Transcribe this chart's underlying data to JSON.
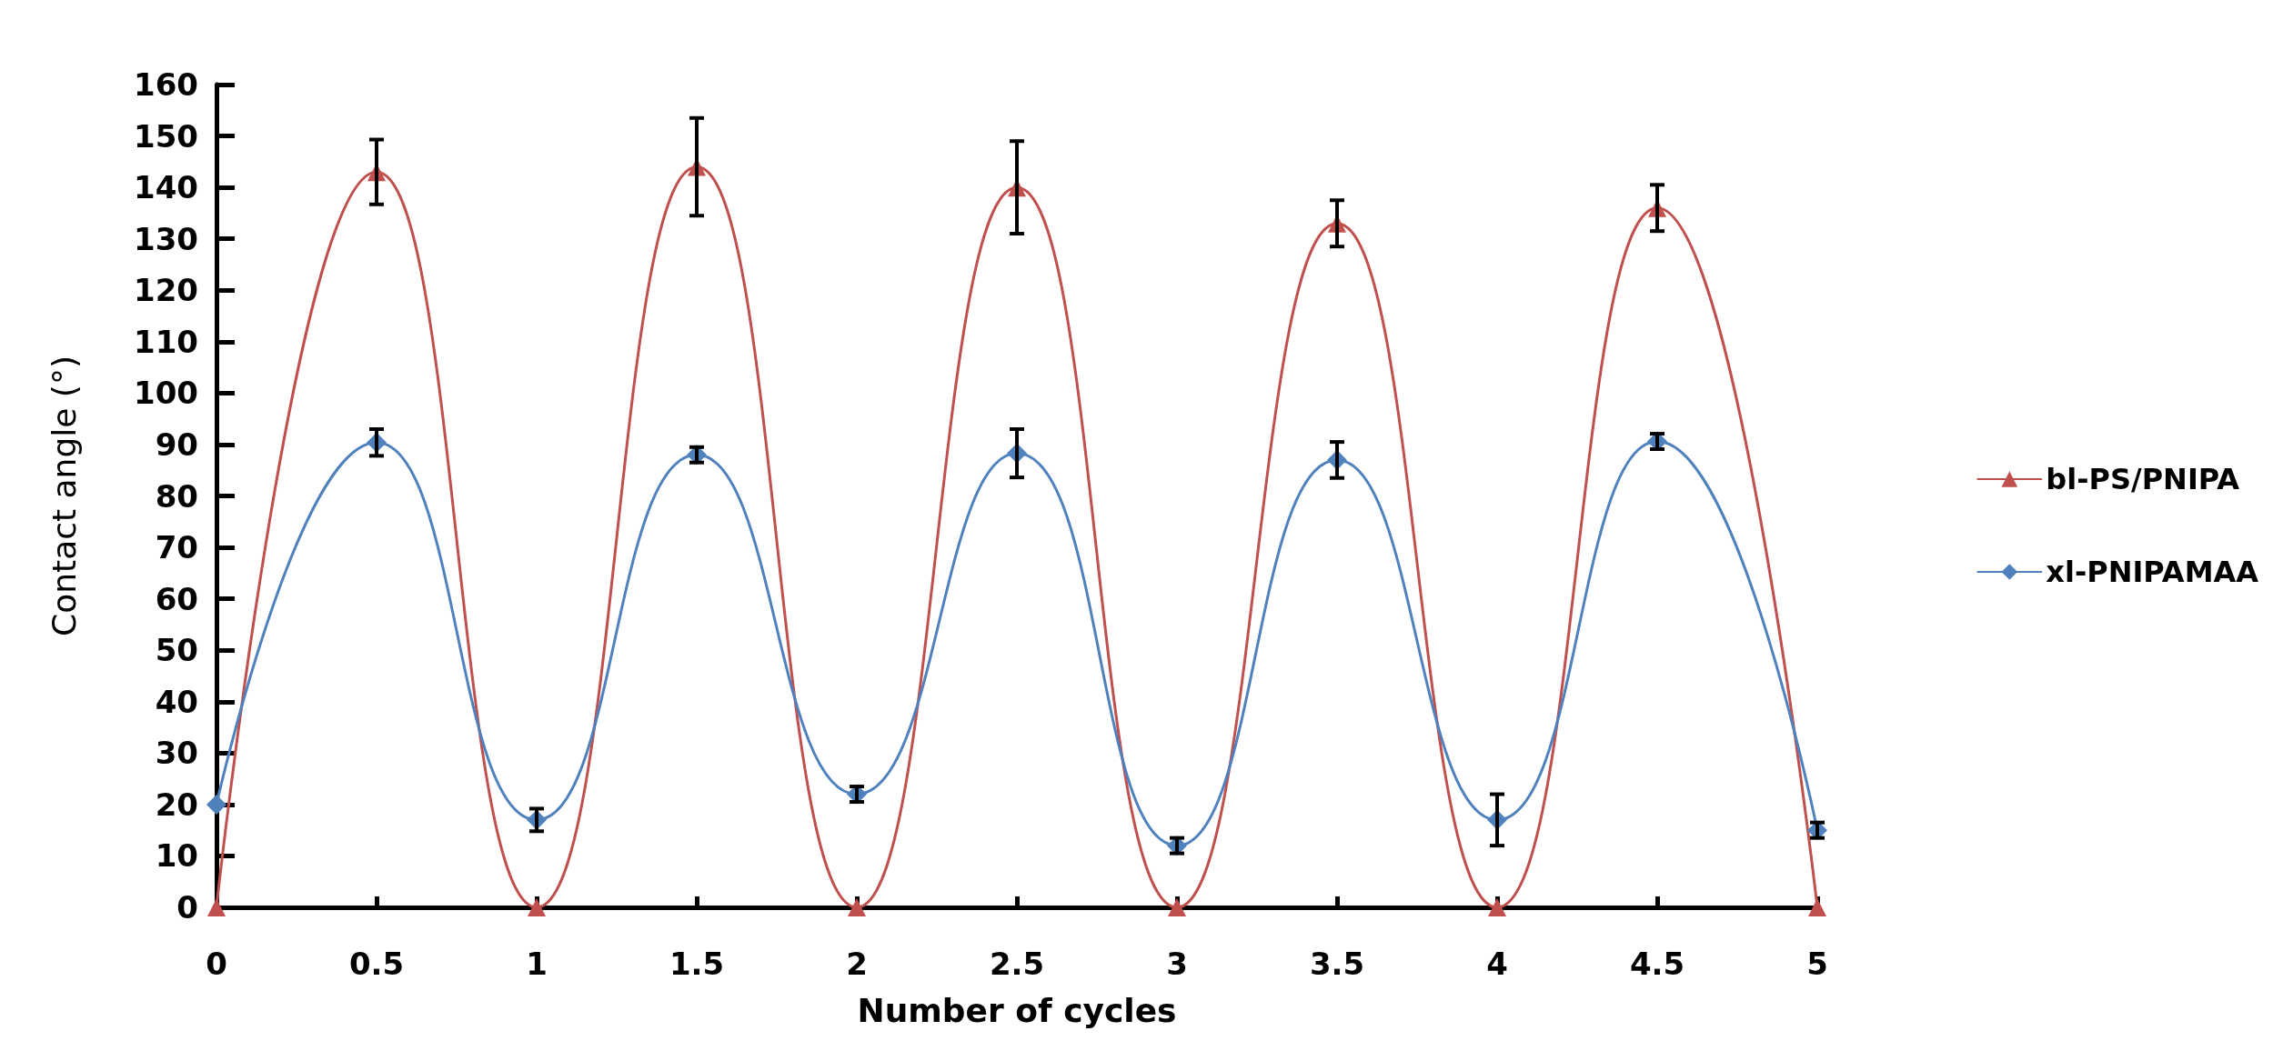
{
  "chart_data": {
    "type": "line",
    "xlabel": "Number of cycles",
    "ylabel": "Contact angle (°)",
    "x": [
      0,
      0.5,
      1,
      1.5,
      2,
      2.5,
      3,
      3.5,
      4,
      4.5,
      5
    ],
    "xlim": [
      0,
      5
    ],
    "xticks": [
      0,
      0.5,
      1,
      1.5,
      2,
      2.5,
      3,
      3.5,
      4,
      4.5,
      5
    ],
    "ylim": [
      0,
      160
    ],
    "yticks": [
      0,
      10,
      20,
      30,
      40,
      50,
      60,
      70,
      80,
      90,
      100,
      110,
      120,
      130,
      140,
      150,
      160
    ],
    "grid": false,
    "legend": "right",
    "line_style": "solid",
    "series": [
      {
        "name": "bl-PS/PNIPA",
        "color": "#c0504d",
        "marker": "triangle",
        "values": [
          0,
          143,
          0,
          144,
          0,
          140,
          0,
          133,
          0,
          136,
          0
        ],
        "errors": [
          null,
          6.3,
          null,
          9.5,
          null,
          9,
          null,
          4.5,
          null,
          4.5,
          null
        ]
      },
      {
        "name": "xl-PNIPAMAA",
        "color": "#4f81bd",
        "marker": "diamond",
        "values": [
          20,
          90.4,
          17,
          88,
          22,
          88.3,
          12,
          87,
          17,
          90.6,
          15
        ],
        "errors": [
          null,
          2.6,
          2.2,
          1.5,
          1.5,
          4.7,
          1.5,
          3.5,
          5,
          1.5,
          1.5
        ]
      }
    ]
  }
}
